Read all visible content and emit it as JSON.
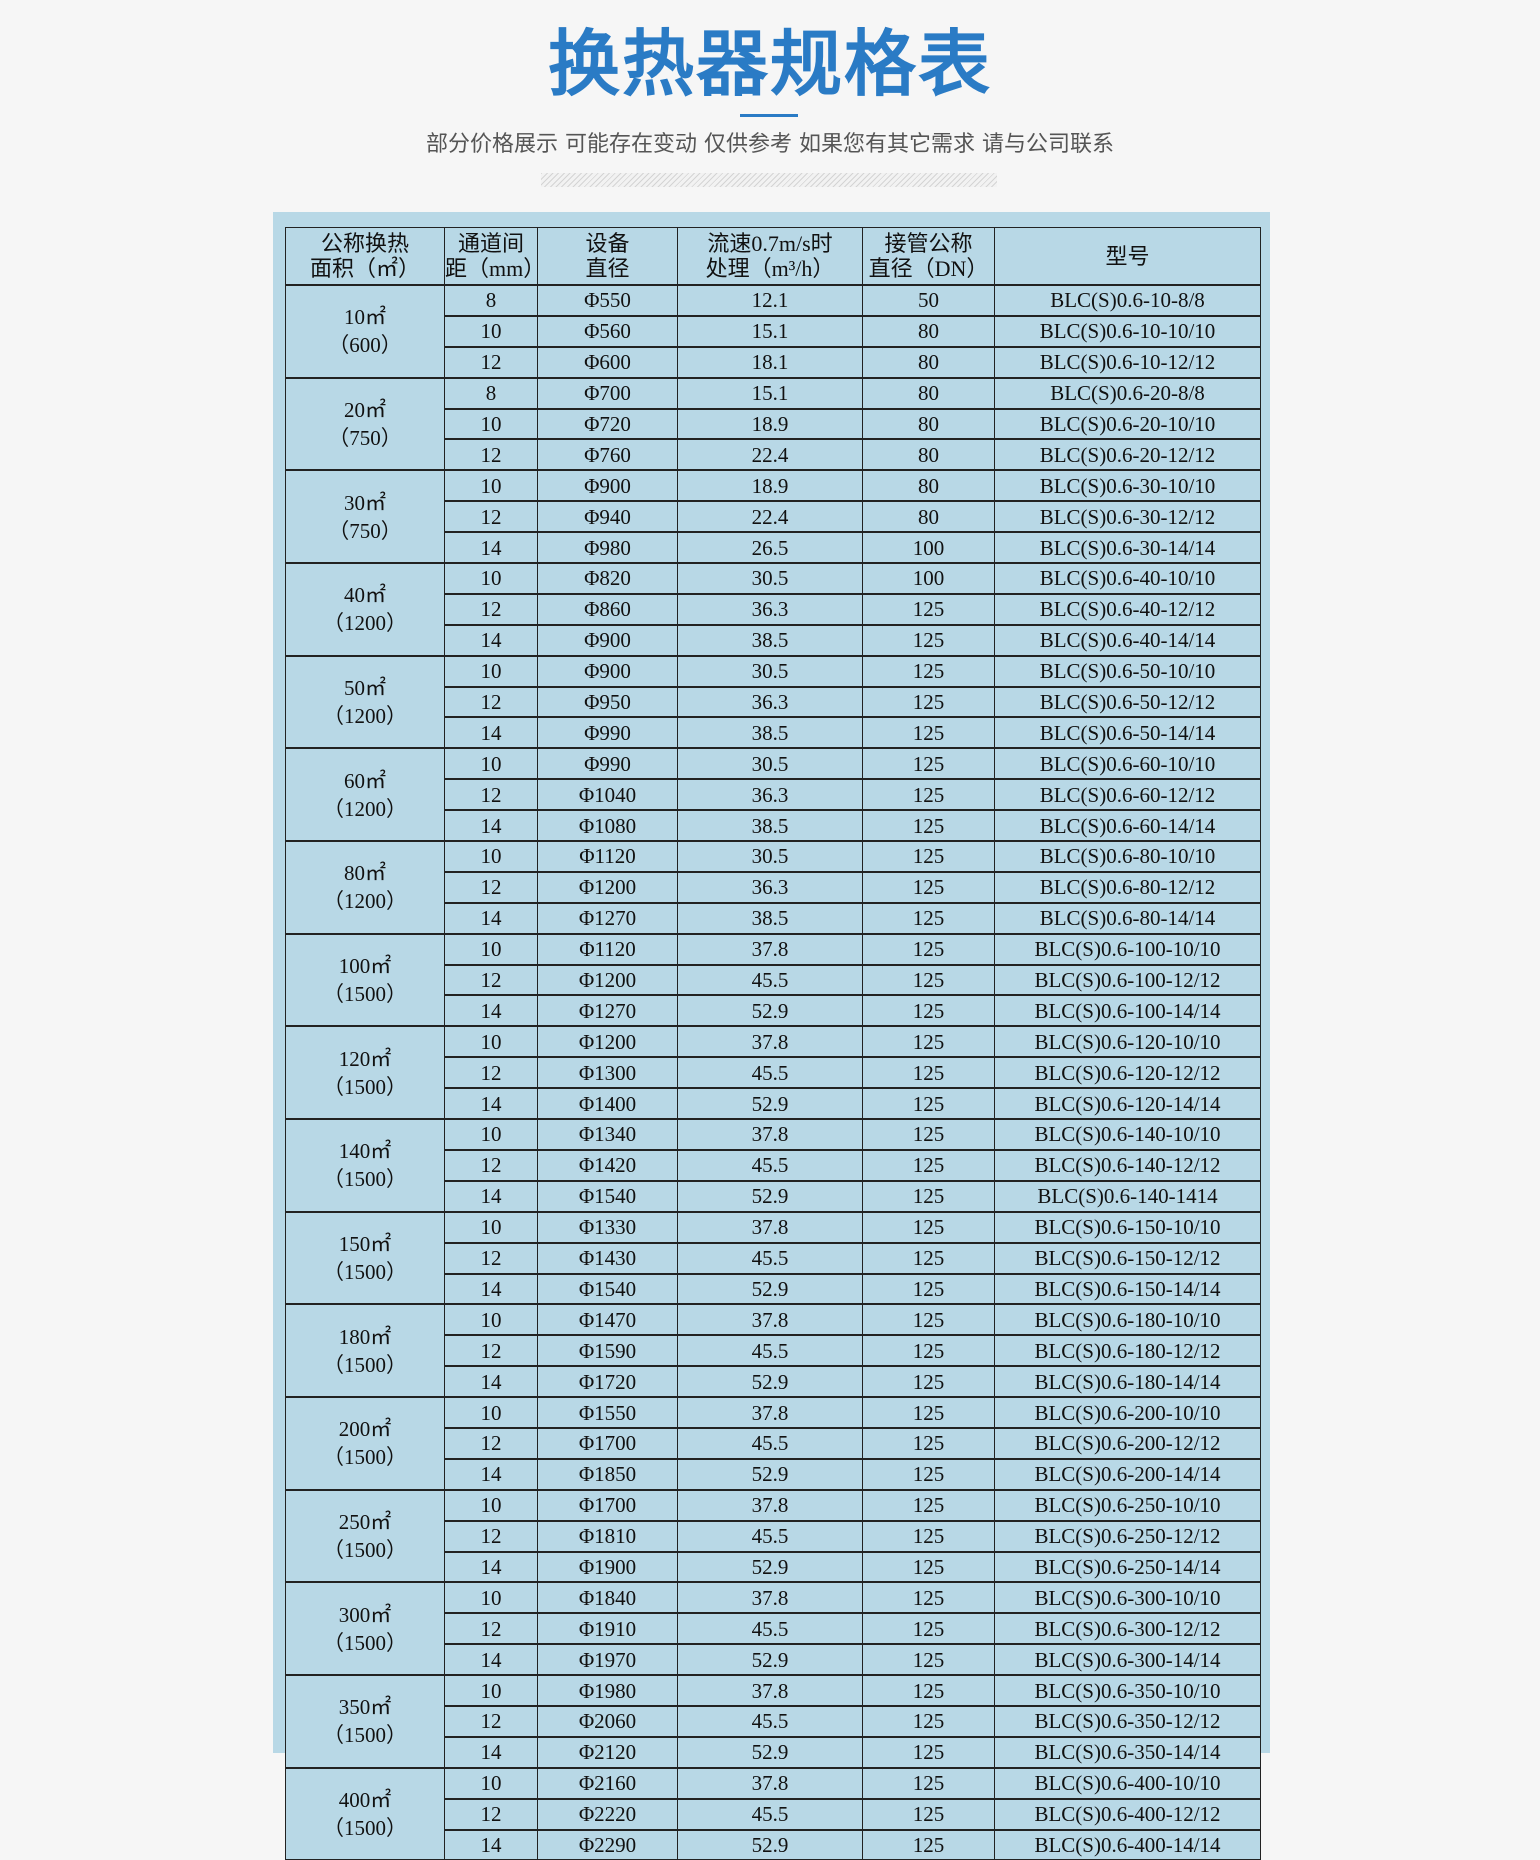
{
  "page": {
    "title": "换热器规格表",
    "subtitle": "部分价格展示 可能存在变动 仅供参考 如果您有其它需求 请与公司联系",
    "accent_color": "#2a7bc5",
    "panel_color": "#b8d8e6"
  },
  "table": {
    "headers": [
      [
        "公称换热",
        "面积（㎡）"
      ],
      [
        "通道间",
        "距（mm）"
      ],
      [
        "设备",
        "直径"
      ],
      [
        "流速0.7m/s时",
        "处理（m³/h）"
      ],
      [
        "接管公称",
        "直径（DN）"
      ],
      [
        "型号"
      ]
    ],
    "groups": [
      {
        "area": "10㎡",
        "sub": "（600）",
        "rows": [
          [
            "8",
            "Φ550",
            "12.1",
            "50",
            "BLC(S)0.6-10-8/8"
          ],
          [
            "10",
            "Φ560",
            "15.1",
            "80",
            "BLC(S)0.6-10-10/10"
          ],
          [
            "12",
            "Φ600",
            "18.1",
            "80",
            "BLC(S)0.6-10-12/12"
          ]
        ]
      },
      {
        "area": "20㎡",
        "sub": "（750）",
        "rows": [
          [
            "8",
            "Φ700",
            "15.1",
            "80",
            "BLC(S)0.6-20-8/8"
          ],
          [
            "10",
            "Φ720",
            "18.9",
            "80",
            "BLC(S)0.6-20-10/10"
          ],
          [
            "12",
            "Φ760",
            "22.4",
            "80",
            "BLC(S)0.6-20-12/12"
          ]
        ]
      },
      {
        "area": "30㎡",
        "sub": "（750）",
        "rows": [
          [
            "10",
            "Φ900",
            "18.9",
            "80",
            "BLC(S)0.6-30-10/10"
          ],
          [
            "12",
            "Φ940",
            "22.4",
            "80",
            "BLC(S)0.6-30-12/12"
          ],
          [
            "14",
            "Φ980",
            "26.5",
            "100",
            "BLC(S)0.6-30-14/14"
          ]
        ]
      },
      {
        "area": "40㎡",
        "sub": "（1200）",
        "rows": [
          [
            "10",
            "Φ820",
            "30.5",
            "100",
            "BLC(S)0.6-40-10/10"
          ],
          [
            "12",
            "Φ860",
            "36.3",
            "125",
            "BLC(S)0.6-40-12/12"
          ],
          [
            "14",
            "Φ900",
            "38.5",
            "125",
            "BLC(S)0.6-40-14/14"
          ]
        ]
      },
      {
        "area": "50㎡",
        "sub": "（1200）",
        "rows": [
          [
            "10",
            "Φ900",
            "30.5",
            "125",
            "BLC(S)0.6-50-10/10"
          ],
          [
            "12",
            "Φ950",
            "36.3",
            "125",
            "BLC(S)0.6-50-12/12"
          ],
          [
            "14",
            "Φ990",
            "38.5",
            "125",
            "BLC(S)0.6-50-14/14"
          ]
        ]
      },
      {
        "area": "60㎡",
        "sub": "（1200）",
        "rows": [
          [
            "10",
            "Φ990",
            "30.5",
            "125",
            "BLC(S)0.6-60-10/10"
          ],
          [
            "12",
            "Φ1040",
            "36.3",
            "125",
            "BLC(S)0.6-60-12/12"
          ],
          [
            "14",
            "Φ1080",
            "38.5",
            "125",
            "BLC(S)0.6-60-14/14"
          ]
        ]
      },
      {
        "area": "80㎡",
        "sub": "（1200）",
        "rows": [
          [
            "10",
            "Φ1120",
            "30.5",
            "125",
            "BLC(S)0.6-80-10/10"
          ],
          [
            "12",
            "Φ1200",
            "36.3",
            "125",
            "BLC(S)0.6-80-12/12"
          ],
          [
            "14",
            "Φ1270",
            "38.5",
            "125",
            "BLC(S)0.6-80-14/14"
          ]
        ]
      },
      {
        "area": "100㎡",
        "sub": "（1500）",
        "rows": [
          [
            "10",
            "Φ1120",
            "37.8",
            "125",
            "BLC(S)0.6-100-10/10"
          ],
          [
            "12",
            "Φ1200",
            "45.5",
            "125",
            "BLC(S)0.6-100-12/12"
          ],
          [
            "14",
            "Φ1270",
            "52.9",
            "125",
            "BLC(S)0.6-100-14/14"
          ]
        ]
      },
      {
        "area": "120㎡",
        "sub": "（1500）",
        "rows": [
          [
            "10",
            "Φ1200",
            "37.8",
            "125",
            "BLC(S)0.6-120-10/10"
          ],
          [
            "12",
            "Φ1300",
            "45.5",
            "125",
            "BLC(S)0.6-120-12/12"
          ],
          [
            "14",
            "Φ1400",
            "52.9",
            "125",
            "BLC(S)0.6-120-14/14"
          ]
        ]
      },
      {
        "area": "140㎡",
        "sub": "（1500）",
        "rows": [
          [
            "10",
            "Φ1340",
            "37.8",
            "125",
            "BLC(S)0.6-140-10/10"
          ],
          [
            "12",
            "Φ1420",
            "45.5",
            "125",
            "BLC(S)0.6-140-12/12"
          ],
          [
            "14",
            "Φ1540",
            "52.9",
            "125",
            "BLC(S)0.6-140-1414"
          ]
        ]
      },
      {
        "area": "150㎡",
        "sub": "（1500）",
        "rows": [
          [
            "10",
            "Φ1330",
            "37.8",
            "125",
            "BLC(S)0.6-150-10/10"
          ],
          [
            "12",
            "Φ1430",
            "45.5",
            "125",
            "BLC(S)0.6-150-12/12"
          ],
          [
            "14",
            "Φ1540",
            "52.9",
            "125",
            "BLC(S)0.6-150-14/14"
          ]
        ]
      },
      {
        "area": "180㎡",
        "sub": "（1500）",
        "rows": [
          [
            "10",
            "Φ1470",
            "37.8",
            "125",
            "BLC(S)0.6-180-10/10"
          ],
          [
            "12",
            "Φ1590",
            "45.5",
            "125",
            "BLC(S)0.6-180-12/12"
          ],
          [
            "14",
            "Φ1720",
            "52.9",
            "125",
            "BLC(S)0.6-180-14/14"
          ]
        ]
      },
      {
        "area": "200㎡",
        "sub": "（1500）",
        "rows": [
          [
            "10",
            "Φ1550",
            "37.8",
            "125",
            "BLC(S)0.6-200-10/10"
          ],
          [
            "12",
            "Φ1700",
            "45.5",
            "125",
            "BLC(S)0.6-200-12/12"
          ],
          [
            "14",
            "Φ1850",
            "52.9",
            "125",
            "BLC(S)0.6-200-14/14"
          ]
        ]
      },
      {
        "area": "250㎡",
        "sub": "（1500）",
        "rows": [
          [
            "10",
            "Φ1700",
            "37.8",
            "125",
            "BLC(S)0.6-250-10/10"
          ],
          [
            "12",
            "Φ1810",
            "45.5",
            "125",
            "BLC(S)0.6-250-12/12"
          ],
          [
            "14",
            "Φ1900",
            "52.9",
            "125",
            "BLC(S)0.6-250-14/14"
          ]
        ]
      },
      {
        "area": "300㎡",
        "sub": "（1500）",
        "rows": [
          [
            "10",
            "Φ1840",
            "37.8",
            "125",
            "BLC(S)0.6-300-10/10"
          ],
          [
            "12",
            "Φ1910",
            "45.5",
            "125",
            "BLC(S)0.6-300-12/12"
          ],
          [
            "14",
            "Φ1970",
            "52.9",
            "125",
            "BLC(S)0.6-300-14/14"
          ]
        ]
      },
      {
        "area": "350㎡",
        "sub": "（1500）",
        "rows": [
          [
            "10",
            "Φ1980",
            "37.8",
            "125",
            "BLC(S)0.6-350-10/10"
          ],
          [
            "12",
            "Φ2060",
            "45.5",
            "125",
            "BLC(S)0.6-350-12/12"
          ],
          [
            "14",
            "Φ2120",
            "52.9",
            "125",
            "BLC(S)0.6-350-14/14"
          ]
        ]
      },
      {
        "area": "400㎡",
        "sub": "（1500）",
        "rows": [
          [
            "10",
            "Φ2160",
            "37.8",
            "125",
            "BLC(S)0.6-400-10/10"
          ],
          [
            "12",
            "Φ2220",
            "45.5",
            "125",
            "BLC(S)0.6-400-12/12"
          ],
          [
            "14",
            "Φ2290",
            "52.9",
            "125",
            "BLC(S)0.6-400-14/14"
          ]
        ]
      }
    ]
  }
}
